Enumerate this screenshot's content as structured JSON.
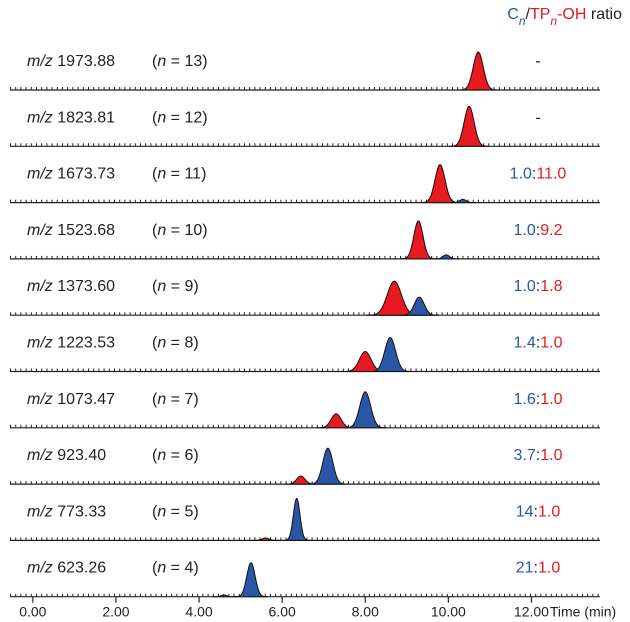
{
  "chart_data": {
    "type": "chromatogram",
    "title": [
      {
        "text": "C",
        "color": "#2a56a5"
      },
      {
        "text": "n",
        "color": "#2a56a5",
        "italic": true,
        "sub": true
      },
      {
        "text": "/",
        "color": "#222222"
      },
      {
        "text": "TP",
        "color": "#e8191f"
      },
      {
        "text": "n",
        "color": "#e8191f",
        "italic": true,
        "sub": true
      },
      {
        "text": "-OH",
        "color": "#e8191f"
      },
      {
        "text": " ratio",
        "color": "#222222"
      }
    ],
    "x_label": "Time (min)",
    "xlim": [
      -0.55,
      13.65
    ],
    "xticks": [
      {
        "value": 0,
        "label": "0.00"
      },
      {
        "value": 2,
        "label": "2.00"
      },
      {
        "value": 4,
        "label": "4.00"
      },
      {
        "value": 6,
        "label": "6.00"
      },
      {
        "value": 8,
        "label": "8.00"
      },
      {
        "value": 10,
        "label": "10.00"
      },
      {
        "value": 12,
        "label": "12.00"
      }
    ],
    "rows": [
      {
        "mz": [
          {
            "text": "m/z",
            "italic": true
          },
          {
            "text": " 1973.88"
          }
        ],
        "n": [
          {
            "text": "("
          },
          {
            "text": "n",
            "italic": true
          },
          {
            "text": " = 13)"
          }
        ],
        "ratio": [
          {
            "text": "-",
            "color": "#222222"
          }
        ],
        "peaks": [
          {
            "center": 10.72,
            "height": 0.95,
            "width": 0.12,
            "color": "#e8191f"
          }
        ]
      },
      {
        "mz": [
          {
            "text": "m/z",
            "italic": true
          },
          {
            "text": " 1823.81"
          }
        ],
        "n": [
          {
            "text": "("
          },
          {
            "text": "n",
            "italic": true
          },
          {
            "text": " = 12)"
          }
        ],
        "ratio": [
          {
            "text": "-",
            "color": "#222222"
          }
        ],
        "peaks": [
          {
            "center": 10.5,
            "height": 1.0,
            "width": 0.12,
            "color": "#e8191f"
          }
        ]
      },
      {
        "mz": [
          {
            "text": "m/z",
            "italic": true
          },
          {
            "text": " 1673.73"
          }
        ],
        "n": [
          {
            "text": "("
          },
          {
            "text": "n",
            "italic": true
          },
          {
            "text": " = 11)"
          }
        ],
        "ratio": [
          {
            "text": "1.0",
            "color": "#2a56a5"
          },
          {
            "text": ":",
            "color": "#222222"
          },
          {
            "text": "11.0",
            "color": "#e8191f"
          }
        ],
        "peaks": [
          {
            "center": 9.8,
            "height": 0.95,
            "width": 0.12,
            "color": "#e8191f"
          },
          {
            "center": 10.35,
            "height": 0.08,
            "width": 0.08,
            "color": "#2a56a5"
          }
        ]
      },
      {
        "mz": [
          {
            "text": "m/z",
            "italic": true
          },
          {
            "text": " 1523.68"
          }
        ],
        "n": [
          {
            "text": "("
          },
          {
            "text": "n",
            "italic": true
          },
          {
            "text": " = 10)"
          }
        ],
        "ratio": [
          {
            "text": "1.0",
            "color": "#2a56a5"
          },
          {
            "text": ":",
            "color": "#222222"
          },
          {
            "text": "9.2",
            "color": "#e8191f"
          }
        ],
        "peaks": [
          {
            "center": 9.28,
            "height": 0.95,
            "width": 0.11,
            "color": "#e8191f"
          },
          {
            "center": 9.95,
            "height": 0.1,
            "width": 0.08,
            "color": "#2a56a5"
          }
        ]
      },
      {
        "mz": [
          {
            "text": "m/z",
            "italic": true
          },
          {
            "text": " 1373.60"
          }
        ],
        "n": [
          {
            "text": "("
          },
          {
            "text": "n",
            "italic": true
          },
          {
            "text": " = 9)"
          }
        ],
        "ratio": [
          {
            "text": "1.0",
            "color": "#2a56a5"
          },
          {
            "text": ":",
            "color": "#222222"
          },
          {
            "text": "1.8",
            "color": "#e8191f"
          }
        ],
        "peaks": [
          {
            "center": 8.7,
            "height": 0.85,
            "width": 0.17,
            "color": "#e8191f"
          },
          {
            "center": 9.3,
            "height": 0.45,
            "width": 0.12,
            "color": "#2a56a5"
          }
        ]
      },
      {
        "mz": [
          {
            "text": "m/z",
            "italic": true
          },
          {
            "text": " 1223.53"
          }
        ],
        "n": [
          {
            "text": "("
          },
          {
            "text": "n",
            "italic": true
          },
          {
            "text": " = 8)"
          }
        ],
        "ratio": [
          {
            "text": "1.4",
            "color": "#2a56a5"
          },
          {
            "text": ":",
            "color": "#222222"
          },
          {
            "text": "1.0",
            "color": "#e8191f"
          }
        ],
        "peaks": [
          {
            "center": 8.0,
            "height": 0.5,
            "width": 0.14,
            "color": "#e8191f"
          },
          {
            "center": 8.6,
            "height": 0.85,
            "width": 0.13,
            "color": "#2a56a5"
          }
        ]
      },
      {
        "mz": [
          {
            "text": "m/z",
            "italic": true
          },
          {
            "text": " 1073.47"
          }
        ],
        "n": [
          {
            "text": "("
          },
          {
            "text": "n",
            "italic": true
          },
          {
            "text": " = 7)"
          }
        ],
        "ratio": [
          {
            "text": "1.6",
            "color": "#2a56a5"
          },
          {
            "text": ":",
            "color": "#222222"
          },
          {
            "text": "1.0",
            "color": "#e8191f"
          }
        ],
        "peaks": [
          {
            "center": 7.3,
            "height": 0.35,
            "width": 0.12,
            "color": "#e8191f"
          },
          {
            "center": 8.0,
            "height": 0.9,
            "width": 0.13,
            "color": "#2a56a5"
          }
        ]
      },
      {
        "mz": [
          {
            "text": "m/z",
            "italic": true
          },
          {
            "text": " 923.40"
          }
        ],
        "n": [
          {
            "text": "("
          },
          {
            "text": "n",
            "italic": true
          },
          {
            "text": " = 6)"
          }
        ],
        "ratio": [
          {
            "text": "3.7",
            "color": "#2a56a5"
          },
          {
            "text": ":",
            "color": "#222222"
          },
          {
            "text": "1.0",
            "color": "#e8191f"
          }
        ],
        "peaks": [
          {
            "center": 6.45,
            "height": 0.2,
            "width": 0.1,
            "color": "#e8191f"
          },
          {
            "center": 7.1,
            "height": 0.9,
            "width": 0.12,
            "color": "#2a56a5"
          }
        ]
      },
      {
        "mz": [
          {
            "text": "m/z",
            "italic": true
          },
          {
            "text": " 773.33"
          }
        ],
        "n": [
          {
            "text": "("
          },
          {
            "text": "n",
            "italic": true
          },
          {
            "text": " = 5)"
          }
        ],
        "ratio": [
          {
            "text": "14",
            "color": "#2a56a5"
          },
          {
            "text": ":",
            "color": "#222222"
          },
          {
            "text": "1.0",
            "color": "#e8191f"
          }
        ],
        "peaks": [
          {
            "center": 5.6,
            "height": 0.06,
            "width": 0.08,
            "color": "#e8191f"
          },
          {
            "center": 6.35,
            "height": 1.05,
            "width": 0.08,
            "color": "#2a56a5"
          }
        ]
      },
      {
        "mz": [
          {
            "text": "m/z",
            "italic": true
          },
          {
            "text": " 623.26"
          }
        ],
        "n": [
          {
            "text": "("
          },
          {
            "text": "n",
            "italic": true
          },
          {
            "text": " = 4)"
          }
        ],
        "ratio": [
          {
            "text": "21",
            "color": "#2a56a5"
          },
          {
            "text": ":",
            "color": "#222222"
          },
          {
            "text": "1.0",
            "color": "#e8191f"
          }
        ],
        "peaks": [
          {
            "center": 4.6,
            "height": 0.04,
            "width": 0.07,
            "color": "#e8191f"
          },
          {
            "center": 5.25,
            "height": 0.85,
            "width": 0.1,
            "color": "#2a56a5"
          }
        ]
      }
    ]
  }
}
